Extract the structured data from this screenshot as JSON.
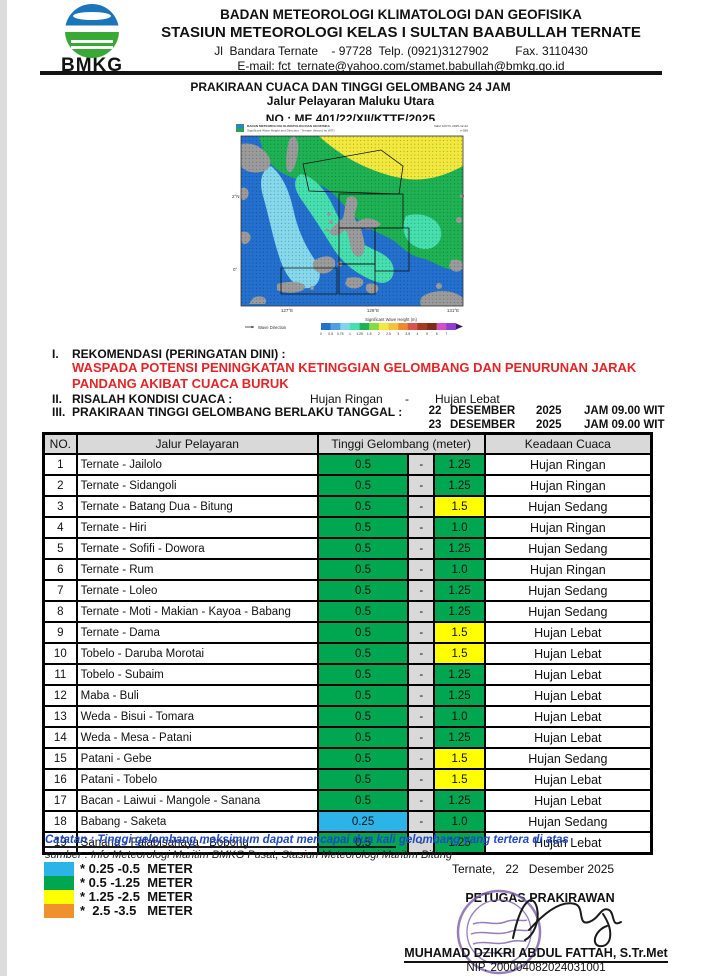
{
  "header": {
    "logo_text": "BMKG",
    "org_line1": "BADAN METEOROLOGI KLIMATOLOGI DAN GEOFISIKA",
    "org_line2": "STASIUN METEOROLOGI KELAS I SULTAN BAABULLAH TERNATE",
    "address": "Jl  Bandara Ternate    - 97728  Telp. (0921)3127902        Fax. 3110430",
    "email": "E-mail: fct_ternate@yahoo.com/stamet.babullah@bmkg.go.id"
  },
  "title": {
    "line1": "PRAKIRAAN CUACA DAN TINGGI GELOMBANG 24 JAM",
    "line2": "Jalur Pelayaran Maluku Utara",
    "line3": "NO : ME.401/22/XII/KTTE/2025"
  },
  "map": {
    "header_left1": "BADAN METEOROLOGI KLIMATOLOGI DAN GEOFISIKA",
    "header_left2": "Significant Wave Height and Direction - Ternate (Issued by WIT)",
    "header_right1": "Valid 12UTC 2025-12-22",
    "header_right2": "t+036",
    "x_ticks": [
      "127°E",
      "129°E",
      "131°E"
    ],
    "y_ticks": [
      "2°N",
      "0°"
    ],
    "legend_direction": "Wave Direction",
    "colorbar_title": "Significant Wave Height (m)",
    "colorbar_ticks": [
      "0",
      "0.5",
      "0.75",
      "1",
      "1.25",
      "1.5",
      "2",
      "2.5",
      "3",
      "3.5",
      "4",
      "5",
      "6",
      "7"
    ],
    "colorbar_colors": [
      "#2470ce",
      "#4fa0e0",
      "#7fd6e8",
      "#46dfae",
      "#1fb254",
      "#86dc3f",
      "#f2e93e",
      "#f2c43e",
      "#ee8a2e",
      "#d9534f",
      "#a33b20",
      "#7a2d14",
      "#d34fc6",
      "#8f3fd0"
    ]
  },
  "sections": {
    "item1_label": "I.",
    "item1_title": "REKOMENDASI (PERINGATAN DINI) :",
    "item1_warning": "WASPADA POTENSI PENINGKATAN KETINGGIAN GELOMBANG DAN PENURUNAN JARAK PANDANG AKIBAT CUACA BURUK",
    "item2_label": "II.",
    "item2_title": "RISALAH KONDISI CUACA :",
    "item2_value1": "Hujan Ringan",
    "item2_sep": "-",
    "item2_value2": "Hujan Lebat",
    "item3_label": "III.",
    "item3_title": "PRAKIRAAN TINGGI GELOMBANG BERLAKU TANGGAL :",
    "item3_dates": [
      {
        "day": "22",
        "month": "DESEMBER",
        "year": "2025",
        "time": "JAM 09.00 WIT"
      },
      {
        "day": "23",
        "month": "DESEMBER",
        "year": "2025",
        "time": "JAM 09.00 WIT"
      }
    ]
  },
  "table": {
    "headers": {
      "no": "NO.",
      "route": "Jalur Pelayaran",
      "wave": "Tinggi Gelombang (meter)",
      "weather": "Keadaan Cuaca"
    },
    "dash": "-",
    "rows": [
      {
        "no": "1",
        "route": "Ternate - Jailolo",
        "min": "0.5",
        "min_color": "green",
        "max": "1.25",
        "max_color": "green",
        "weather": "Hujan Ringan"
      },
      {
        "no": "2",
        "route": "Ternate - Sidangoli",
        "min": "0.5",
        "min_color": "green",
        "max": "1.25",
        "max_color": "green",
        "weather": "Hujan Ringan"
      },
      {
        "no": "3",
        "route": "Ternate - Batang Dua - Bitung",
        "min": "0.5",
        "min_color": "green",
        "max": "1.5",
        "max_color": "yellow",
        "weather": "Hujan Sedang"
      },
      {
        "no": "4",
        "route": "Ternate - Hiri",
        "min": "0.5",
        "min_color": "green",
        "max": "1.0",
        "max_color": "green",
        "weather": "Hujan Ringan"
      },
      {
        "no": "5",
        "route": "Ternate - Sofifi - Dowora",
        "min": "0.5",
        "min_color": "green",
        "max": "1.25",
        "max_color": "green",
        "weather": "Hujan Sedang"
      },
      {
        "no": "6",
        "route": "Ternate - Rum",
        "min": "0.5",
        "min_color": "green",
        "max": "1.0",
        "max_color": "green",
        "weather": "Hujan Ringan"
      },
      {
        "no": "7",
        "route": "Ternate - Loleo",
        "min": "0.5",
        "min_color": "green",
        "max": "1.25",
        "max_color": "green",
        "weather": "Hujan Sedang"
      },
      {
        "no": "8",
        "route": "Ternate - Moti - Makian - Kayoa - Babang",
        "min": "0.5",
        "min_color": "green",
        "max": "1.25",
        "max_color": "green",
        "weather": "Hujan Sedang"
      },
      {
        "no": "9",
        "route": "Ternate - Dama",
        "min": "0.5",
        "min_color": "green",
        "max": "1.5",
        "max_color": "yellow",
        "weather": "Hujan Lebat"
      },
      {
        "no": "10",
        "route": "Tobelo - Daruba Morotai",
        "min": "0.5",
        "min_color": "green",
        "max": "1.5",
        "max_color": "yellow",
        "weather": "Hujan Lebat"
      },
      {
        "no": "11",
        "route": "Tobelo - Subaim",
        "min": "0.5",
        "min_color": "green",
        "max": "1.25",
        "max_color": "green",
        "weather": "Hujan Lebat"
      },
      {
        "no": "12",
        "route": "Maba - Buli",
        "min": "0.5",
        "min_color": "green",
        "max": "1.25",
        "max_color": "green",
        "weather": "Hujan Lebat"
      },
      {
        "no": "13",
        "route": "Weda - Bisui - Tomara",
        "min": "0.5",
        "min_color": "green",
        "max": "1.0",
        "max_color": "green",
        "weather": "Hujan Lebat"
      },
      {
        "no": "14",
        "route": "Weda - Mesa - Patani",
        "min": "0.5",
        "min_color": "green",
        "max": "1.25",
        "max_color": "green",
        "weather": "Hujan Lebat"
      },
      {
        "no": "15",
        "route": "Patani - Gebe",
        "min": "0.5",
        "min_color": "green",
        "max": "1.5",
        "max_color": "yellow",
        "weather": "Hujan Sedang"
      },
      {
        "no": "16",
        "route": "Patani - Tobelo",
        "min": "0.5",
        "min_color": "green",
        "max": "1.5",
        "max_color": "yellow",
        "weather": "Hujan Lebat"
      },
      {
        "no": "17",
        "route": "Bacan - Laiwui - Mangole - Sanana",
        "min": "0.5",
        "min_color": "green",
        "max": "1.25",
        "max_color": "green",
        "weather": "Hujan Lebat"
      },
      {
        "no": "18",
        "route": "Babang - Saketa",
        "min": "0.25",
        "min_color": "cyan",
        "max": "1.0",
        "max_color": "green",
        "weather": "Hujan Sedang"
      },
      {
        "no": "19",
        "route": "Sanana - Falabisahaya - Bobong",
        "min": "0.5",
        "min_color": "green",
        "max": "1.25",
        "max_color": "green",
        "weather": "Hujan Lebat"
      }
    ]
  },
  "notes": {
    "catatan_part1": "Catatan : Tinggi gelombang maksimum dapat mencapai dua kali",
    "catatan_part2": " gelombang yang tertera di atas",
    "sumber": "sumber : Info Meteorologi Maritim BMKG Pusat,  Stasiun Meteorologi Maritim Bitung"
  },
  "legend": {
    "items": [
      {
        "label": "* 0.25 -0.5  METER",
        "color": "#2cb4e8"
      },
      {
        "label": "* 0.5 -1.25  METER",
        "color": "#00a650"
      },
      {
        "label": "* 1.25 -2.5  METER",
        "color": "#ffff00"
      },
      {
        "label": "*  2.5 -3.5   METER",
        "color": "#f0912d"
      }
    ]
  },
  "footer": {
    "place_date": "Ternate,   22   Desember 2025",
    "role": "PETUGAS PRAKIRAWAN",
    "name": "MUHAMAD DZIKRI ABDUL FATTAH, S.Tr.Met",
    "nip": "NIP. 200004082024031001"
  }
}
